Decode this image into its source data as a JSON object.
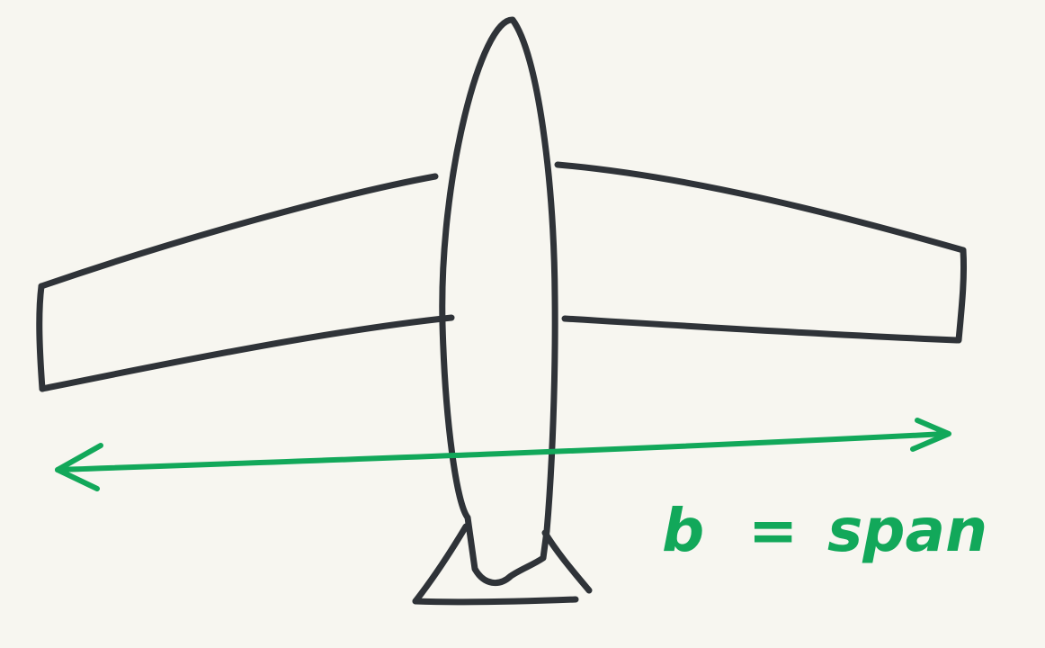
{
  "colors": {
    "paper": "#f7f6f0",
    "aircraft_ink": "#2f3338",
    "dimension_ink": "#12a85a"
  },
  "diagram": {
    "subject": "aircraft-planform",
    "dimension": {
      "symbol": "b",
      "equals": "=",
      "word": "span"
    }
  }
}
